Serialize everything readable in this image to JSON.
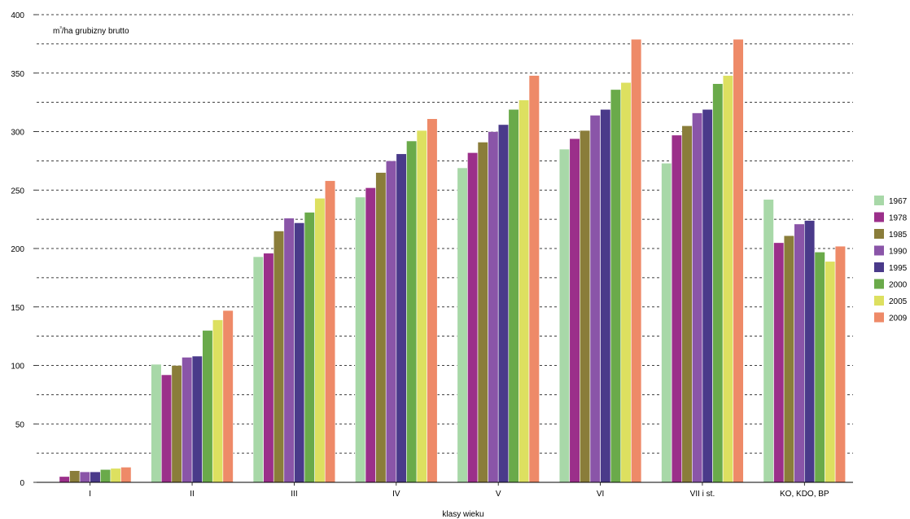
{
  "chart_data": {
    "type": "bar",
    "ylabel": "m³/ha grubizny brutto",
    "xlabel": "klasy wieku",
    "ylim": [
      0,
      400
    ],
    "yticks": [
      0,
      50,
      100,
      150,
      200,
      250,
      300,
      350,
      400
    ],
    "grid": "horizontal dashed, every 25",
    "legend_position": "right",
    "categories": [
      "I",
      "II",
      "III",
      "IV",
      "V",
      "VI",
      "VII i st.",
      "KO, KDO, BP"
    ],
    "series": [
      {
        "name": "1967",
        "color": "#a8d8a8",
        "values": [
          0,
          101,
          193,
          244,
          269,
          285,
          273,
          242
        ]
      },
      {
        "name": "1978",
        "color": "#9b2f8a",
        "values": [
          5,
          92,
          196,
          252,
          282,
          294,
          297,
          205
        ]
      },
      {
        "name": "1985",
        "color": "#8a7d3a",
        "values": [
          10,
          100,
          215,
          265,
          291,
          301,
          305,
          211
        ]
      },
      {
        "name": "1990",
        "color": "#8a55a8",
        "values": [
          9,
          107,
          226,
          275,
          300,
          314,
          316,
          221
        ]
      },
      {
        "name": "1995",
        "color": "#4a3a8a",
        "values": [
          9,
          108,
          222,
          281,
          306,
          319,
          319,
          224
        ]
      },
      {
        "name": "2000",
        "color": "#6aaa4a",
        "values": [
          11,
          130,
          231,
          292,
          319,
          336,
          341,
          197
        ]
      },
      {
        "name": "2005",
        "color": "#dde060",
        "values": [
          12,
          139,
          243,
          301,
          327,
          342,
          348,
          189
        ]
      },
      {
        "name": "2009",
        "color": "#ee8a68",
        "values": [
          13,
          147,
          258,
          311,
          348,
          379,
          379,
          202
        ]
      }
    ]
  }
}
